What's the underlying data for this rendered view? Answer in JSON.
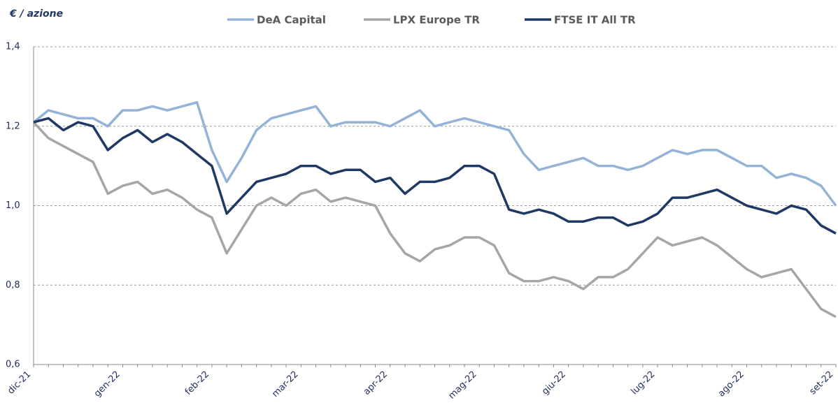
{
  "chart_data": {
    "type": "line",
    "y_label": "€ /  azione",
    "categories": [
      "dic-21",
      null,
      null,
      null,
      null,
      null,
      "gen-22",
      null,
      null,
      null,
      null,
      null,
      "feb-22",
      null,
      null,
      null,
      null,
      null,
      "mar-22",
      null,
      null,
      null,
      null,
      null,
      "apr-22",
      null,
      null,
      null,
      null,
      null,
      "mag-22",
      null,
      null,
      null,
      null,
      null,
      "giu-22",
      null,
      null,
      null,
      null,
      null,
      "lug-22",
      null,
      null,
      null,
      null,
      null,
      "ago-22",
      null,
      null,
      null,
      null,
      null,
      "set-22"
    ],
    "series": [
      {
        "name": "DeA Capital",
        "color": "#95b3d7",
        "values": [
          1.21,
          1.24,
          1.23,
          1.22,
          1.22,
          1.2,
          1.24,
          1.24,
          1.25,
          1.24,
          1.25,
          1.26,
          1.14,
          1.06,
          1.12,
          1.19,
          1.22,
          1.23,
          1.24,
          1.25,
          1.2,
          1.21,
          1.21,
          1.21,
          1.2,
          1.22,
          1.24,
          1.2,
          1.21,
          1.22,
          1.21,
          1.2,
          1.19,
          1.13,
          1.09,
          1.1,
          1.11,
          1.12,
          1.1,
          1.1,
          1.09,
          1.1,
          1.12,
          1.14,
          1.13,
          1.14,
          1.14,
          1.12,
          1.1,
          1.1,
          1.07,
          1.08,
          1.07,
          1.05,
          1.0
        ]
      },
      {
        "name": "LPX Europe TR",
        "color": "#a6a6a6",
        "values": [
          1.21,
          1.17,
          1.15,
          1.13,
          1.11,
          1.03,
          1.05,
          1.06,
          1.03,
          1.04,
          1.02,
          0.99,
          0.97,
          0.88,
          0.94,
          1.0,
          1.02,
          1.0,
          1.03,
          1.04,
          1.01,
          1.02,
          1.01,
          1.0,
          0.93,
          0.88,
          0.86,
          0.89,
          0.9,
          0.92,
          0.92,
          0.9,
          0.83,
          0.81,
          0.81,
          0.82,
          0.81,
          0.79,
          0.82,
          0.82,
          0.84,
          0.88,
          0.92,
          0.9,
          0.91,
          0.92,
          0.9,
          0.87,
          0.84,
          0.82,
          0.83,
          0.84,
          0.79,
          0.74,
          0.72
        ]
      },
      {
        "name": "FTSE IT All TR",
        "color": "#1f3864",
        "values": [
          1.21,
          1.22,
          1.19,
          1.21,
          1.2,
          1.14,
          1.17,
          1.19,
          1.16,
          1.18,
          1.16,
          1.13,
          1.1,
          0.98,
          1.02,
          1.06,
          1.07,
          1.08,
          1.1,
          1.1,
          1.08,
          1.09,
          1.09,
          1.06,
          1.07,
          1.03,
          1.06,
          1.06,
          1.07,
          1.1,
          1.1,
          1.08,
          0.99,
          0.98,
          0.99,
          0.98,
          0.96,
          0.96,
          0.97,
          0.97,
          0.95,
          0.96,
          0.98,
          1.02,
          1.02,
          1.03,
          1.04,
          1.02,
          1.0,
          0.99,
          0.98,
          1.0,
          0.99,
          0.95,
          0.93
        ]
      }
    ],
    "ylim": [
      0.6,
      1.4
    ],
    "yticks": [
      {
        "value": 0.6,
        "label": "0,6"
      },
      {
        "value": 0.8,
        "label": "0,8"
      },
      {
        "value": 1.0,
        "label": "1,0"
      },
      {
        "value": 1.2,
        "label": "1,2"
      },
      {
        "value": 1.4,
        "label": "1,4"
      }
    ],
    "grid": true
  }
}
